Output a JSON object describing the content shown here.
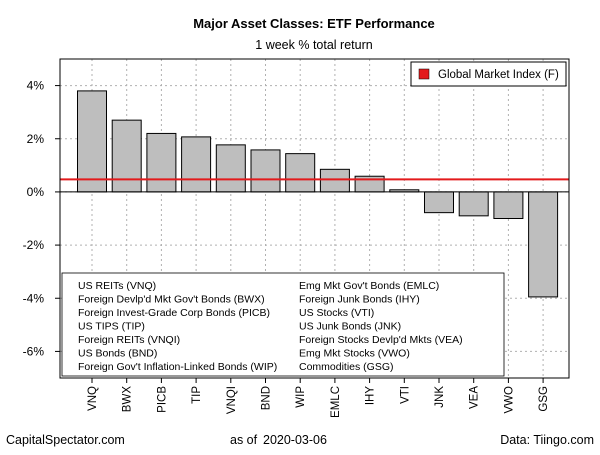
{
  "chart_data": {
    "type": "bar",
    "title": "Major Asset Classes: ETF Performance",
    "subtitle": "1 week % total return",
    "categories": [
      "VNQ",
      "BWX",
      "PICB",
      "TIP",
      "VNQI",
      "BND",
      "WIP",
      "EMLC",
      "IHY",
      "VTI",
      "JNK",
      "VEA",
      "VWO",
      "GSG"
    ],
    "values": [
      3.8,
      2.7,
      2.2,
      2.07,
      1.77,
      1.58,
      1.44,
      0.85,
      0.59,
      0.08,
      -0.78,
      -0.9,
      -1.0,
      -3.95
    ],
    "ylim": [
      -7,
      5
    ],
    "yticks": [
      -6,
      -4,
      -2,
      0,
      2,
      4
    ],
    "ytick_labels": [
      "-6%",
      "-4%",
      "-2%",
      "0%",
      "2%",
      "4%"
    ],
    "reference_line": {
      "label": "Global Market Index (F)",
      "value": 0.47,
      "color": "#e31a1c"
    },
    "bar_color": "#bebebe",
    "grid": true,
    "legend_position": "top-right",
    "key_columns": [
      [
        "US REITs (VNQ)",
        "Foreign Devlp'd Mkt Gov't Bonds (BWX)",
        "Foreign Invest-Grade Corp Bonds (PICB)",
        "US TIPS (TIP)",
        "Foreign REITs (VNQI)",
        "US Bonds (BND)",
        "Foreign Gov't Inflation-Linked Bonds (WIP)"
      ],
      [
        "Emg Mkt Gov't Bonds (EMLC)",
        "Foreign Junk Bonds (IHY)",
        "US Stocks (VTI)",
        "US Junk Bonds (JNK)",
        "Foreign Stocks Devlp'd Mkts (VEA)",
        "Emg Mkt Stocks (VWO)",
        "Commodities (GSG)"
      ]
    ]
  },
  "footer": {
    "source_left": "CapitalSpectator.com",
    "date_prefix": "as of",
    "date": "2020-03-06",
    "source_right": "Data: Tiingo.com"
  }
}
